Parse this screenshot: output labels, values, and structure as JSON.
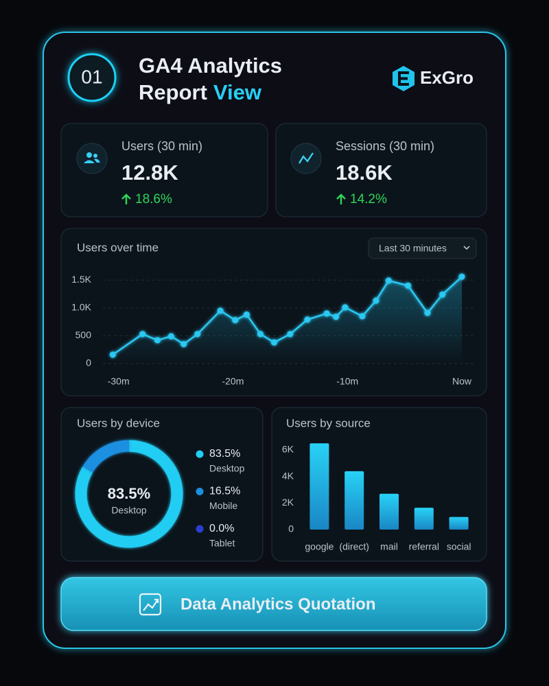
{
  "header": {
    "badge": "01",
    "title_line1": "GA4 Analytics",
    "title_line2": "Report",
    "title_highlight": "View",
    "logo": "ExGro"
  },
  "stats": [
    {
      "label": "Users (30 min)",
      "value": "12.8K",
      "change": "18.6%"
    },
    {
      "label": "Sessions (30 min)",
      "value": "18.6K",
      "change": "14.2%"
    }
  ],
  "range_selector": "Last 30 minutes",
  "chart_data": [
    {
      "type": "line",
      "title": "Users over time",
      "color": "#2bc8f2",
      "x": [
        -30.5,
        -27.9,
        -26.6,
        -25.4,
        -24.3,
        -23.1,
        -21.1,
        -19.8,
        -18.8,
        -17.6,
        -16.4,
        -15,
        -13.5,
        -11.8,
        -11,
        -10.2,
        -8.7,
        -7.5,
        -6.4,
        -4.7,
        -3,
        -1.7,
        0
      ],
      "values": [
        160,
        530,
        420,
        490,
        350,
        530,
        950,
        780,
        880,
        530,
        380,
        530,
        790,
        900,
        840,
        1010,
        850,
        1130,
        1490,
        1400,
        910,
        1240,
        1560
      ],
      "xlim": [
        -31,
        0.3
      ],
      "xticks": [
        {
          "value": -30,
          "label": "-30m"
        },
        {
          "value": -20,
          "label": "-20m"
        },
        {
          "value": -10,
          "label": "-10m"
        },
        {
          "value": 0,
          "label": "Now"
        }
      ],
      "ylim": [
        0,
        1700
      ],
      "yticks": [
        0,
        500,
        {
          "value": 1000,
          "label": "1.0K"
        },
        {
          "value": 1500,
          "label": "1.5K"
        }
      ],
      "grid": true
    },
    {
      "type": "donut",
      "title": "Users by device",
      "categories": [
        "Desktop",
        "Mobile",
        "Tablet"
      ],
      "values": [
        83.5,
        16.5,
        0.0
      ],
      "value_labels": [
        "83.5%",
        "16.5%",
        "0.0%"
      ],
      "colors": [
        "#22cdf3",
        "#1a8fe0",
        "#2a3fd0"
      ]
    },
    {
      "type": "bar",
      "title": "Users by source",
      "color": "#22c3ec",
      "categories": [
        "google",
        "(direct)",
        "mail",
        "referral",
        "social"
      ],
      "values": [
        6500,
        4400,
        2700,
        1650,
        950
      ],
      "ylim": [
        0,
        6800
      ],
      "yticks": [
        0,
        {
          "value": 2000,
          "label": "2K"
        },
        {
          "value": 4000,
          "label": "4K"
        },
        {
          "value": 6000,
          "label": "6K"
        }
      ]
    }
  ],
  "button": "Data Analytics Quotation"
}
